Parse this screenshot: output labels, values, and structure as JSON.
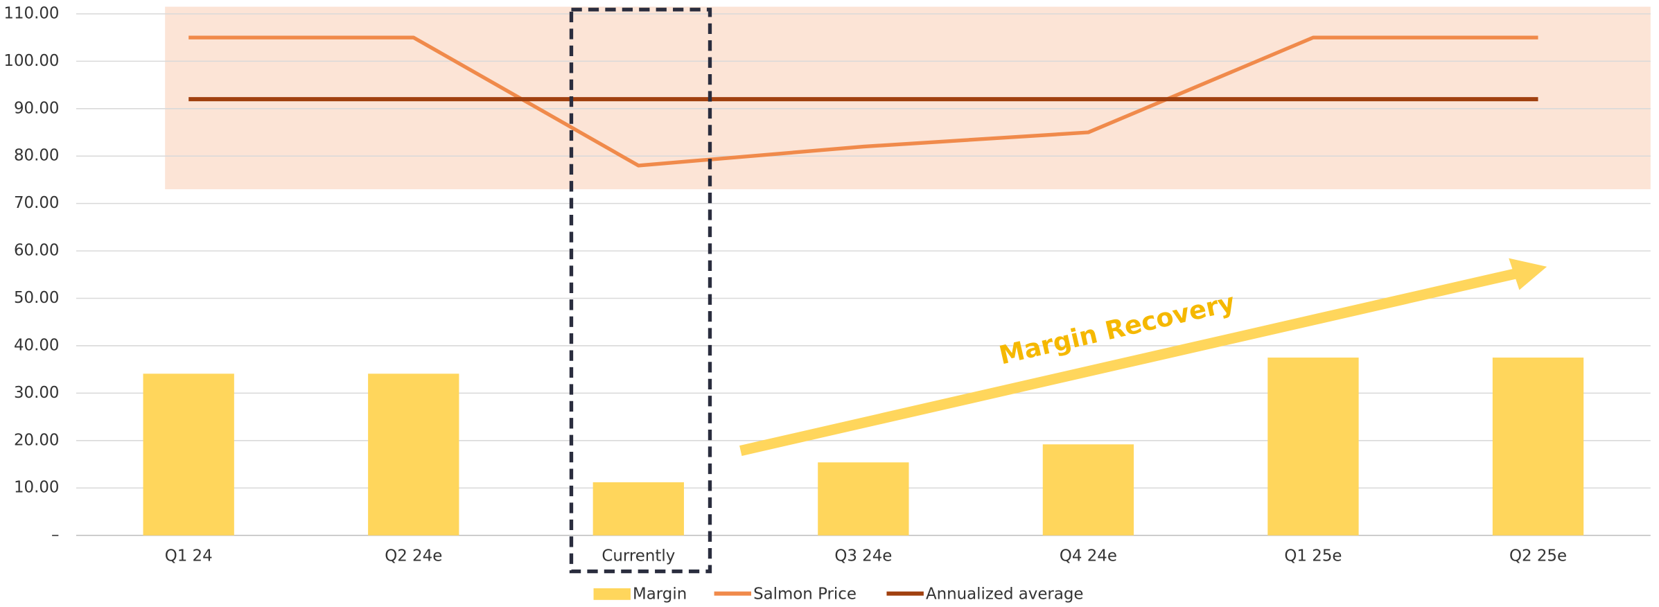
{
  "chart_data": {
    "type": "combo",
    "categories": [
      "Q1 24",
      "Q2 24e",
      "Currently",
      "Q3 24e",
      "Q4 24e",
      "Q1 25e",
      "Q2 25e"
    ],
    "series": [
      {
        "name": "Margin",
        "type": "bar",
        "color": "#ffd65c",
        "values": [
          34.1,
          34.1,
          11.2,
          15.4,
          19.2,
          37.5,
          37.5
        ]
      },
      {
        "name": "Salmon Price",
        "type": "line",
        "color": "#f08a4b",
        "values": [
          105,
          105,
          78,
          82,
          85,
          105,
          105
        ]
      },
      {
        "name": "Annualized average",
        "type": "line",
        "color": "#a0400f",
        "values": [
          92,
          92,
          92,
          92,
          92,
          92,
          92
        ]
      }
    ],
    "highlight_range": [
      73,
      111.5
    ],
    "highlight_color": "#fce4d6",
    "ylim": [
      0,
      110
    ],
    "yticks": [
      {
        "value": 0,
        "label": "–"
      },
      {
        "value": 10,
        "label": "10.00"
      },
      {
        "value": 20,
        "label": "20.00"
      },
      {
        "value": 30,
        "label": "30.00"
      },
      {
        "value": 40,
        "label": "40.00"
      },
      {
        "value": 50,
        "label": "50.00"
      },
      {
        "value": 60,
        "label": "60.00"
      },
      {
        "value": 70,
        "label": "70.00"
      },
      {
        "value": 80,
        "label": "80.00"
      },
      {
        "value": 90,
        "label": "90.00"
      },
      {
        "value": 100,
        "label": "100.00"
      },
      {
        "value": 110,
        "label": "110.00"
      }
    ],
    "grid": true,
    "annotation": "Margin Recovery"
  }
}
